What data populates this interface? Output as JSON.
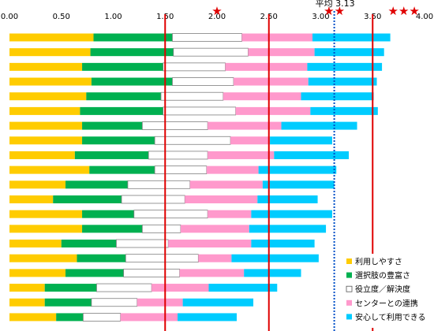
{
  "chart_data": {
    "type": "bar",
    "orientation": "horizontal",
    "stacked": true,
    "xlim": [
      0,
      4.0
    ],
    "x_ticks": [
      "0.00",
      "0.50",
      "1.00",
      "1.50",
      "2.00",
      "2.50",
      "3.00",
      "3.50",
      "4.00"
    ],
    "grid": false,
    "legend_position": "bottom-right",
    "series": [
      {
        "name": "利用しやすさ",
        "color": "#FFCC00",
        "values": [
          0.81,
          0.78,
          0.7,
          0.79,
          0.74,
          0.68,
          0.7,
          0.7,
          0.63,
          0.77,
          0.54,
          0.42,
          0.7,
          0.7,
          0.5,
          0.65,
          0.54,
          0.34,
          0.34,
          0.45
        ]
      },
      {
        "name": "選択肢の豊富さ",
        "color": "#00B050",
        "values": [
          0.76,
          0.8,
          0.78,
          0.78,
          0.72,
          0.8,
          0.58,
          0.7,
          0.71,
          0.63,
          0.6,
          0.66,
          0.5,
          0.58,
          0.53,
          0.47,
          0.56,
          0.5,
          0.45,
          0.26
        ]
      },
      {
        "name": "役立度／解決度",
        "color": "#FFFFFF",
        "values": [
          0.67,
          0.72,
          0.6,
          0.59,
          0.6,
          0.7,
          0.63,
          0.73,
          0.57,
          0.5,
          0.6,
          0.61,
          0.71,
          0.37,
          0.5,
          0.7,
          0.54,
          0.53,
          0.44,
          0.36
        ]
      },
      {
        "name": "センターとの連携",
        "color": "#FF99CC",
        "values": [
          0.68,
          0.64,
          0.79,
          0.72,
          0.75,
          0.72,
          0.71,
          0.38,
          0.64,
          0.5,
          0.7,
          0.7,
          0.42,
          0.66,
          0.8,
          0.32,
          0.62,
          0.55,
          0.44,
          0.55
        ]
      },
      {
        "name": "安心して利用できる",
        "color": "#00CCFF",
        "values": [
          0.75,
          0.67,
          0.72,
          0.66,
          0.7,
          0.65,
          0.73,
          0.6,
          0.72,
          0.75,
          0.69,
          0.58,
          0.78,
          0.74,
          0.61,
          0.84,
          0.55,
          0.66,
          0.68,
          0.57
        ]
      }
    ],
    "reference_lines": [
      {
        "x": 1.5,
        "style": "solid",
        "color": "#E00000"
      },
      {
        "x": 2.5,
        "style": "solid",
        "color": "#E00000"
      },
      {
        "x": 3.5,
        "style": "solid",
        "color": "#E00000"
      },
      {
        "x": 3.13,
        "style": "dotted",
        "color": "#0050C8",
        "label": "平均 3.13"
      }
    ],
    "star_ratings": [
      {
        "x": 2.0,
        "stars": "★"
      },
      {
        "x": 3.13,
        "stars": "★★"
      },
      {
        "x": 3.8,
        "stars": "★★★"
      }
    ]
  }
}
